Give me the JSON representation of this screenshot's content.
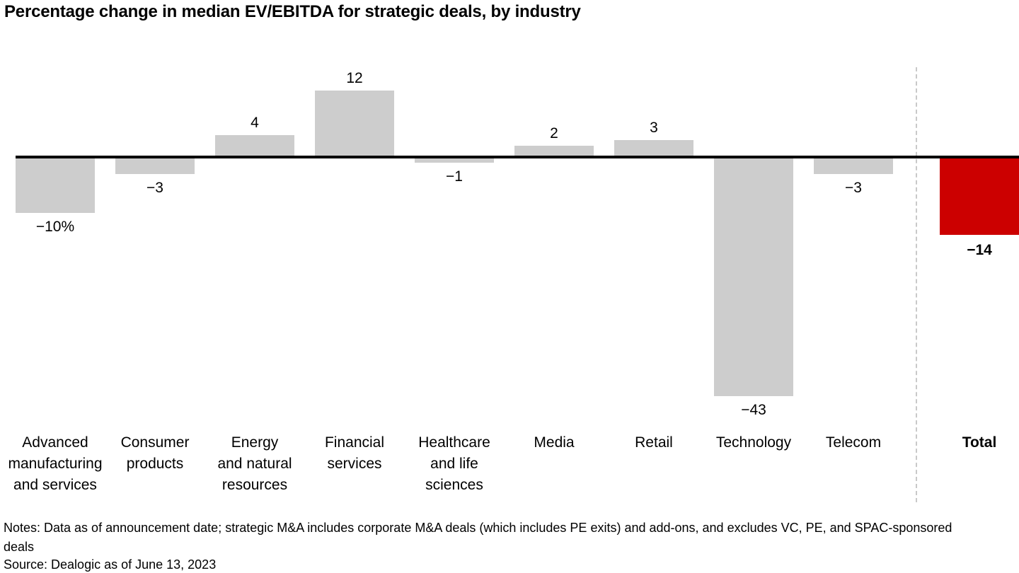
{
  "title": "Percentage change in median EV/EBITDA for strategic deals, by industry",
  "chart_data": {
    "type": "bar",
    "title": "Percentage change in median EV/EBITDA for strategic deals, by industry",
    "categories": [
      "Advanced manufacturing and services",
      "Consumer products",
      "Energy and natural resources",
      "Financial services",
      "Healthcare and life sciences",
      "Media",
      "Retail",
      "Technology",
      "Telecom",
      "Total"
    ],
    "tick_labels": [
      "Advanced\nmanufacturing\nand services",
      "Consumer\nproducts",
      "Energy\nand natural\nresources",
      "Financial\nservices",
      "Healthcare\nand life\nsciences",
      "Media",
      "Retail",
      "Technology",
      "Telecom",
      "Total"
    ],
    "values": [
      -10,
      -3,
      4,
      12,
      -1,
      2,
      3,
      -43,
      -3,
      -14
    ],
    "value_labels": [
      "−10%",
      "−3",
      "4",
      "12",
      "−1",
      "2",
      "3",
      "−43",
      "−3",
      "−14"
    ],
    "ylim": [
      -45,
      14
    ],
    "unit": "percent",
    "grid": false,
    "legend": false,
    "bar_color": "#cdcdcd",
    "total_bar_color": "#cc0000",
    "axis_color": "#000000",
    "divider_color": "#c9c9c9",
    "layout_note": "zero baseline axis; Total bar separated by vertical dashed divider; negative labels below bars, positive labels above bars"
  },
  "footer": {
    "notes": "Notes: Data as of announcement date; strategic M&A includes corporate M&A deals (which includes PE exits) and add-ons, and excludes VC, PE, and SPAC-sponsored deals",
    "source": "Source: Dealogic as of June 13, 2023"
  }
}
